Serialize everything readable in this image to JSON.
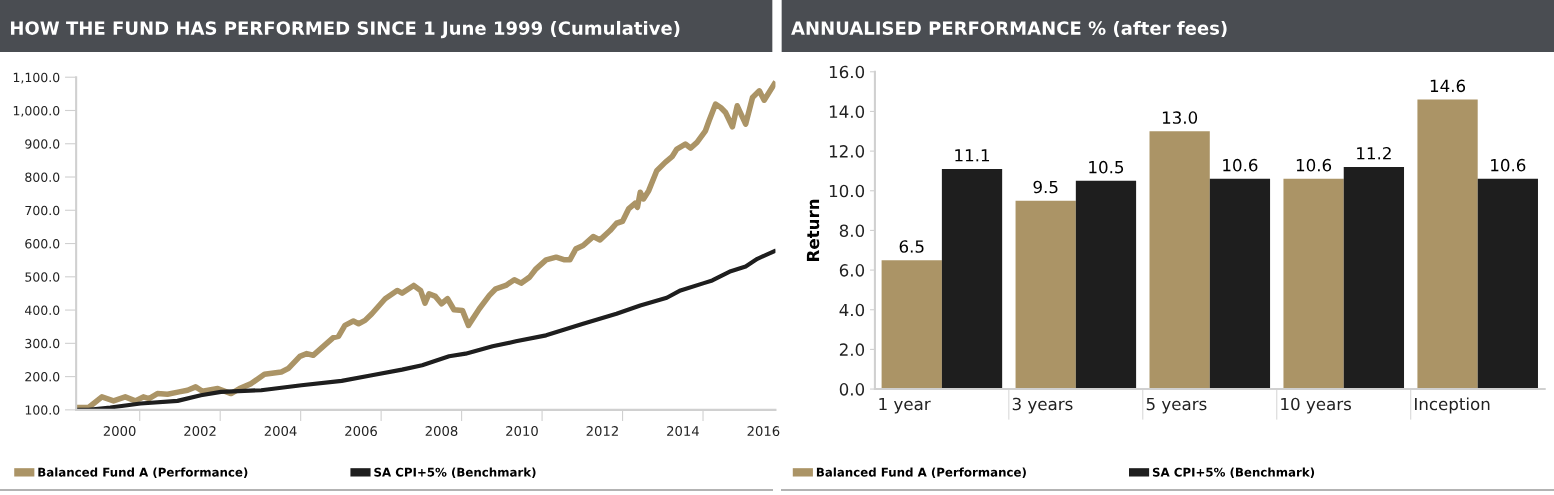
{
  "chart_data": [
    {
      "type": "line",
      "title": "HOW THE FUND HAS PERFORMED SINCE 1 June 1999 (Cumulative)",
      "legend": "bottom",
      "grid": false,
      "marker": "none",
      "line_style": "solid",
      "xlim": [
        1999.42,
        2016.8
      ],
      "ylim": [
        100,
        1100
      ],
      "xticks": [
        {
          "value": 2000.5,
          "label": "2000"
        },
        {
          "value": 2002.5,
          "label": "2002"
        },
        {
          "value": 2004.5,
          "label": "2004"
        },
        {
          "value": 2006.5,
          "label": "2006"
        },
        {
          "value": 2008.5,
          "label": "2008"
        },
        {
          "value": 2010.5,
          "label": "2010"
        },
        {
          "value": 2012.5,
          "label": "2012"
        },
        {
          "value": 2014.5,
          "label": "2014"
        },
        {
          "value": 2016.5,
          "label": "2016"
        },
        {
          "value": 2001,
          "label": null
        },
        {
          "value": 2003,
          "label": null
        },
        {
          "value": 2005,
          "label": null
        },
        {
          "value": 2007,
          "label": null
        },
        {
          "value": 2009,
          "label": null
        },
        {
          "value": 2011,
          "label": null
        },
        {
          "value": 2013,
          "label": null
        },
        {
          "value": 2015,
          "label": null
        }
      ],
      "yticks": [
        {
          "value": 100,
          "label": "100.0"
        },
        {
          "value": 200,
          "label": "200.0"
        },
        {
          "value": 300,
          "label": "300.0"
        },
        {
          "value": 400,
          "label": "400.0"
        },
        {
          "value": 500,
          "label": "500.0"
        },
        {
          "value": 600,
          "label": "600.0"
        },
        {
          "value": 700,
          "label": "700.0"
        },
        {
          "value": 800,
          "label": "800.0"
        },
        {
          "value": 900,
          "label": "900.0"
        },
        {
          "value": 1000,
          "label": "1,000.0"
        },
        {
          "value": 1100,
          "label": "1,100.0"
        }
      ],
      "series": [
        {
          "name": "Balanced Fund A (Performance)",
          "color": "#ab9466",
          "x": [
            1999.42,
            1999.73,
            2000.06,
            2000.35,
            2000.64,
            2000.89,
            2001.09,
            2001.23,
            2001.44,
            2001.69,
            2001.98,
            2002.19,
            2002.39,
            2002.56,
            2002.94,
            2003.27,
            2003.48,
            2003.77,
            2004.1,
            2004.52,
            2004.69,
            2004.98,
            2005.15,
            2005.31,
            2005.64,
            2005.81,
            2005.94,
            2006.1,
            2006.31,
            2006.44,
            2006.6,
            2006.77,
            2007.1,
            2007.4,
            2007.52,
            2007.81,
            2007.98,
            2008.09,
            2008.19,
            2008.35,
            2008.5,
            2008.65,
            2008.81,
            2009.02,
            2009.17,
            2009.44,
            2009.69,
            2009.85,
            2010.1,
            2010.31,
            2010.48,
            2010.69,
            2010.85,
            2011.1,
            2011.35,
            2011.56,
            2011.69,
            2011.84,
            2012.02,
            2012.27,
            2012.44,
            2012.69,
            2012.85,
            2013.0,
            2013.15,
            2013.31,
            2013.37,
            2013.44,
            2013.52,
            2013.65,
            2013.85,
            2014.06,
            2014.23,
            2014.35,
            2014.56,
            2014.69,
            2014.85,
            2015.06,
            2015.15,
            2015.31,
            2015.44,
            2015.56,
            2015.73,
            2015.85,
            2016.06,
            2016.23,
            2016.4,
            2016.52,
            2016.77
          ],
          "values": [
            107,
            107,
            139,
            127,
            139,
            127,
            139,
            134,
            149,
            147,
            154,
            159,
            169,
            156,
            164,
            149,
            164,
            179,
            207,
            214,
            224,
            261,
            269,
            264,
            299,
            317,
            321,
            354,
            367,
            359,
            369,
            389,
            434,
            459,
            451,
            474,
            459,
            421,
            449,
            441,
            419,
            434,
            401,
            399,
            354,
            404,
            444,
            464,
            474,
            491,
            481,
            499,
            524,
            551,
            559,
            551,
            551,
            584,
            594,
            621,
            611,
            639,
            661,
            667,
            704,
            721,
            709,
            754,
            734,
            759,
            819,
            844,
            861,
            884,
            899,
            887,
            904,
            939,
            969,
            1019,
            1009,
            994,
            951,
            1014,
            959,
            1039,
            1059,
            1031,
            1079
          ]
        },
        {
          "name": "SA CPI+5% (Benchmark)",
          "color": "#1e1e1e",
          "x": [
            1999.42,
            1999.73,
            2000.27,
            2001.02,
            2001.94,
            2002.52,
            2003.02,
            2004.02,
            2005.02,
            2006.02,
            2006.77,
            2007.52,
            2008.02,
            2008.69,
            2009.1,
            2009.77,
            2010.35,
            2011.1,
            2012.02,
            2012.85,
            2013.44,
            2014.1,
            2014.44,
            2015.02,
            2015.23,
            2015.69,
            2016.06,
            2016.35,
            2016.77
          ],
          "values": [
            100,
            100,
            107,
            119,
            127,
            144,
            154,
            159,
            174,
            187,
            204,
            221,
            234,
            261,
            269,
            291,
            306,
            324,
            359,
            389,
            414,
            437,
            459,
            481,
            489,
            517,
            531,
            554,
            577
          ]
        }
      ]
    },
    {
      "type": "bar",
      "title": "ANNUALISED PERFORMANCE % (after fees)",
      "ylabel": "Return",
      "legend": "bottom",
      "grid": false,
      "categories": [
        "1 year",
        "3 years",
        "5 years",
        "10 years",
        "Inception"
      ],
      "ylim": [
        0,
        16
      ],
      "yticks": [
        {
          "value": 0,
          "label": "0.0"
        },
        {
          "value": 2,
          "label": "2.0"
        },
        {
          "value": 4,
          "label": "4.0"
        },
        {
          "value": 6,
          "label": "6.0"
        },
        {
          "value": 8,
          "label": "8.0"
        },
        {
          "value": 10,
          "label": "10.0"
        },
        {
          "value": 12,
          "label": "12.0"
        },
        {
          "value": 14,
          "label": "14.0"
        },
        {
          "value": 16,
          "label": "16.0"
        }
      ],
      "series": [
        {
          "name": "Balanced Fund A (Performance)",
          "color": "#ab9466",
          "values": [
            6.5,
            9.5,
            13.0,
            10.6,
            14.6
          ],
          "value_labels": [
            "6.5",
            "9.5",
            "13.0",
            "10.6",
            "14.6"
          ]
        },
        {
          "name": "SA CPI+5% (Benchmark)",
          "color": "#1e1e1e",
          "values": [
            11.1,
            10.5,
            10.6,
            11.2,
            10.6
          ],
          "value_labels": [
            "11.1",
            "10.5",
            "10.6",
            "11.2",
            "10.6"
          ]
        }
      ]
    }
  ]
}
